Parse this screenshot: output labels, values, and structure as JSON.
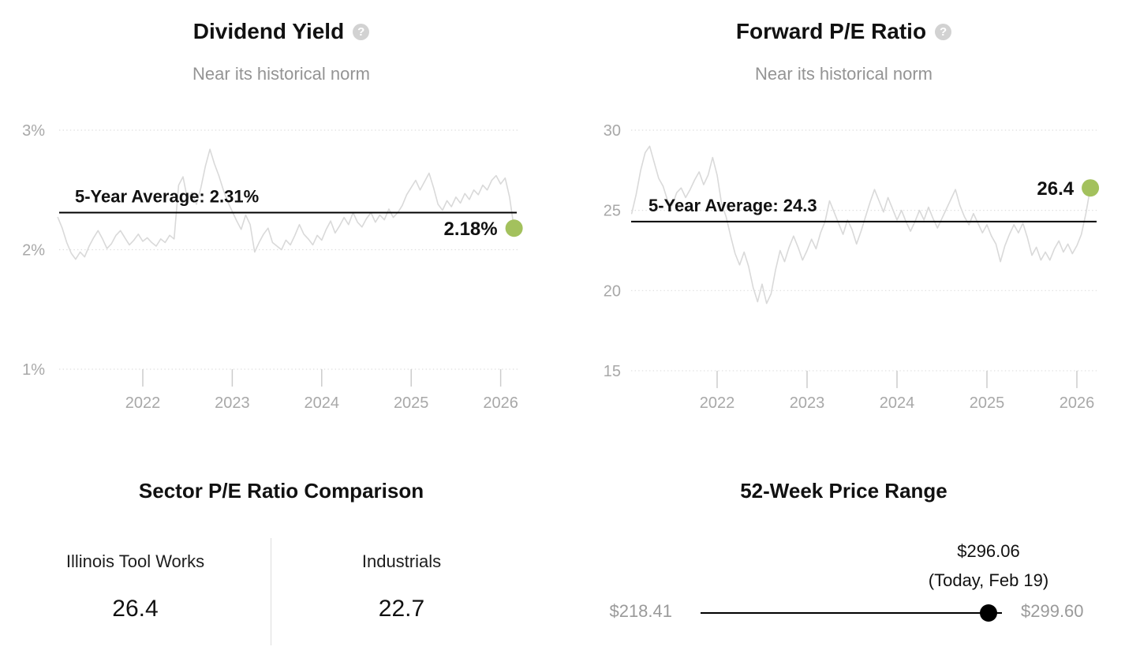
{
  "colors": {
    "accent_green": "#a3c15d",
    "series_line": "#d9d9d9",
    "gridline": "#dedede",
    "tick": "#cccccc",
    "axis_label": "#a8a8a8",
    "average_line": "#000000",
    "muted_text": "#9a9a9a"
  },
  "chart_data": [
    {
      "type": "line",
      "title": "Dividend Yield",
      "help_icon": "?",
      "subtitle": "Near its historical norm",
      "ylabel": "",
      "xlabel": "",
      "ylim": [
        1,
        3
      ],
      "xlim": [
        2021.05,
        2026.15
      ],
      "grid": "dotted-horizontal",
      "legend": "none",
      "y_ticks": [
        {
          "value": 3,
          "label": "3%"
        },
        {
          "value": 2,
          "label": "2%"
        },
        {
          "value": 1,
          "label": "1%"
        }
      ],
      "x_ticks": [
        {
          "value": 2022,
          "label": "2022"
        },
        {
          "value": 2023,
          "label": "2023"
        },
        {
          "value": 2024,
          "label": "2024"
        },
        {
          "value": 2025,
          "label": "2025"
        },
        {
          "value": 2026,
          "label": "2026"
        }
      ],
      "average_value": 2.31,
      "average_label": "5-Year Average: 2.31%",
      "current_value": 2.18,
      "current_label": "2.18%",
      "series": [
        {
          "name": "Dividend Yield",
          "x_start": 2021.05,
          "x_step": 0.05,
          "values": [
            2.27,
            2.18,
            2.06,
            1.97,
            1.92,
            1.98,
            1.94,
            2.03,
            2.1,
            2.16,
            2.09,
            2.01,
            2.05,
            2.12,
            2.16,
            2.1,
            2.04,
            2.08,
            2.13,
            2.07,
            2.1,
            2.06,
            2.03,
            2.09,
            2.06,
            2.12,
            2.09,
            2.54,
            2.61,
            2.42,
            2.48,
            2.38,
            2.52,
            2.7,
            2.84,
            2.72,
            2.62,
            2.5,
            2.4,
            2.32,
            2.24,
            2.17,
            2.29,
            2.21,
            1.98,
            2.06,
            2.13,
            2.18,
            2.06,
            2.03,
            2.0,
            2.08,
            2.04,
            2.12,
            2.21,
            2.13,
            2.09,
            2.04,
            2.12,
            2.08,
            2.17,
            2.24,
            2.14,
            2.2,
            2.27,
            2.21,
            2.31,
            2.23,
            2.19,
            2.26,
            2.31,
            2.23,
            2.29,
            2.25,
            2.34,
            2.27,
            2.31,
            2.37,
            2.46,
            2.52,
            2.58,
            2.5,
            2.57,
            2.64,
            2.52,
            2.38,
            2.33,
            2.41,
            2.36,
            2.44,
            2.39,
            2.47,
            2.42,
            2.5,
            2.46,
            2.54,
            2.5,
            2.58,
            2.62,
            2.55,
            2.6,
            2.44,
            2.18
          ]
        }
      ]
    },
    {
      "type": "line",
      "title": "Forward P/E Ratio",
      "help_icon": "?",
      "subtitle": "Near its historical norm",
      "ylabel": "",
      "xlabel": "",
      "ylim": [
        15,
        30
      ],
      "xlim": [
        2021.05,
        2026.15
      ],
      "grid": "dotted-horizontal",
      "legend": "none",
      "y_ticks": [
        {
          "value": 30,
          "label": "30"
        },
        {
          "value": 25,
          "label": "25"
        },
        {
          "value": 20,
          "label": "20"
        },
        {
          "value": 15,
          "label": "15"
        }
      ],
      "x_ticks": [
        {
          "value": 2022,
          "label": "2022"
        },
        {
          "value": 2023,
          "label": "2023"
        },
        {
          "value": 2024,
          "label": "2024"
        },
        {
          "value": 2025,
          "label": "2025"
        },
        {
          "value": 2026,
          "label": "2026"
        }
      ],
      "average_value": 24.3,
      "average_label": "5-Year Average: 24.3",
      "current_value": 26.4,
      "current_label": "26.4",
      "series": [
        {
          "name": "Forward P/E Ratio",
          "x_start": 2021.05,
          "x_step": 0.05,
          "values": [
            24.8,
            26.0,
            27.5,
            28.6,
            29.0,
            28.0,
            27.0,
            26.5,
            25.6,
            25.3,
            26.1,
            26.4,
            25.8,
            26.3,
            26.9,
            27.4,
            26.6,
            27.2,
            28.3,
            27.2,
            25.4,
            24.6,
            23.4,
            22.3,
            21.6,
            22.4,
            21.5,
            20.2,
            19.3,
            20.4,
            19.2,
            19.8,
            21.3,
            22.5,
            21.8,
            22.7,
            23.4,
            22.7,
            21.9,
            22.5,
            23.2,
            22.6,
            23.6,
            24.3,
            25.6,
            24.9,
            24.2,
            23.5,
            24.4,
            23.8,
            22.9,
            23.7,
            24.6,
            25.5,
            26.3,
            25.6,
            24.9,
            25.8,
            25.1,
            24.4,
            25.0,
            24.3,
            23.7,
            24.3,
            25.0,
            24.4,
            25.2,
            24.5,
            23.9,
            24.5,
            25.1,
            25.7,
            26.3,
            25.3,
            24.6,
            24.1,
            24.8,
            24.2,
            23.6,
            24.1,
            23.4,
            22.9,
            21.8,
            22.8,
            23.5,
            24.1,
            23.6,
            24.2,
            23.3,
            22.2,
            22.7,
            21.9,
            22.4,
            21.9,
            22.6,
            23.1,
            22.4,
            22.9,
            22.3,
            22.8,
            23.5,
            24.8,
            26.4
          ]
        }
      ]
    }
  ],
  "sector_comparison": {
    "title": "Sector P/E Ratio Comparison",
    "columns": [
      {
        "label": "Illinois Tool Works",
        "value": "26.4"
      },
      {
        "label": "Industrials",
        "value": "22.7"
      }
    ]
  },
  "price_range": {
    "title": "52-Week Price Range",
    "low": 218.41,
    "high": 299.6,
    "current": 296.06,
    "low_label": "$218.41",
    "high_label": "$299.60",
    "current_label": "$296.06",
    "current_sublabel": "(Today, Feb 19)"
  }
}
